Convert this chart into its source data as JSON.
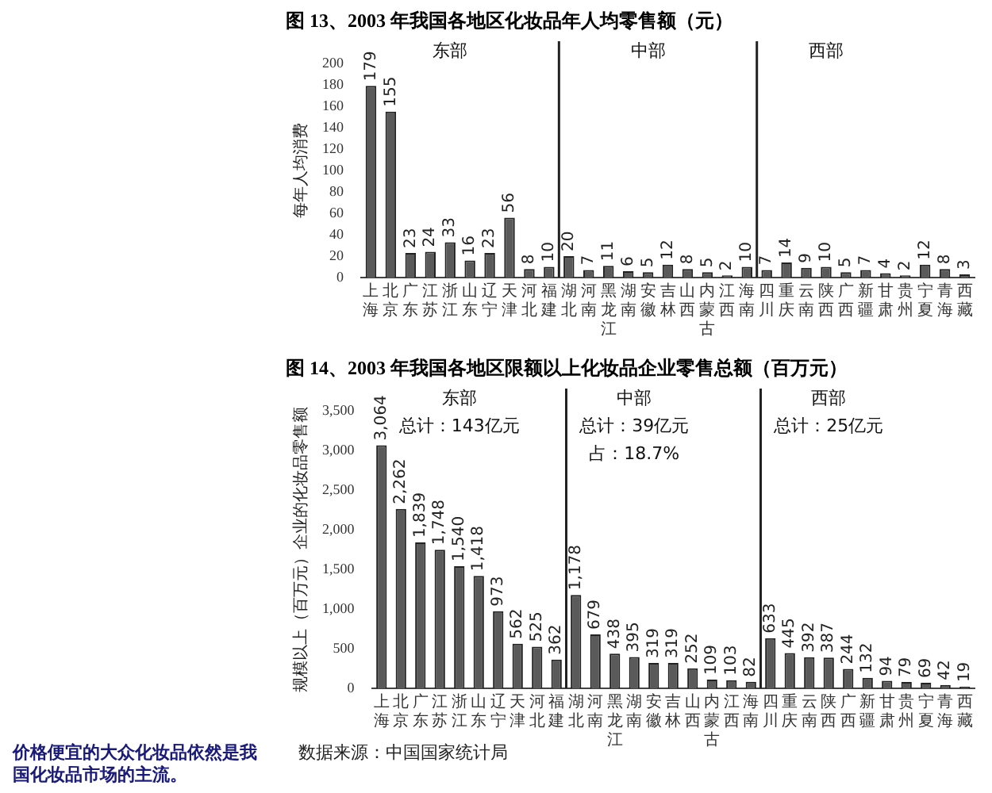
{
  "chart_data": [
    {
      "type": "bar",
      "title": "图 13、2003 年我国各地区化妆品年人均零售额（元）",
      "ylabel": "每年人均消费",
      "categories": [
        "上海",
        "北京",
        "广东",
        "江苏",
        "浙江",
        "山东",
        "辽宁",
        "天津",
        "河北",
        "福建",
        "湖北",
        "河南",
        "黑龙江",
        "湖南",
        "安徽",
        "吉林",
        "山西",
        "内蒙古",
        "江西",
        "海南",
        "四川",
        "重庆",
        "云南",
        "陕西",
        "广西",
        "新疆",
        "甘肃",
        "贵州",
        "宁夏",
        "青海",
        "西藏"
      ],
      "values": [
        179,
        155,
        23,
        24,
        33,
        16,
        23,
        56,
        8,
        10,
        20,
        7,
        11,
        6,
        5,
        12,
        8,
        5,
        2,
        10,
        7,
        14,
        9,
        10,
        5,
        7,
        4,
        2,
        12,
        8,
        3
      ],
      "color": "#5a5a5a",
      "data_labels": true,
      "ylim": [
        0,
        200
      ],
      "yticks": [
        0,
        20,
        40,
        60,
        80,
        100,
        120,
        140,
        160,
        180,
        200
      ],
      "grid": false,
      "legend": false,
      "annotations": [
        "东部",
        "中部",
        "西部"
      ]
    },
    {
      "type": "bar",
      "title": "图 14、2003 年我国各地区限额以上化妆品企业零售总额（百万元）",
      "ylabel": "规模以上（百万元）企业的化妆品零售额",
      "categories": [
        "上海",
        "北京",
        "广东",
        "江苏",
        "浙江",
        "山东",
        "辽宁",
        "天津",
        "河北",
        "福建",
        "湖北",
        "河南",
        "黑龙江",
        "湖南",
        "安徽",
        "吉林",
        "山西",
        "内蒙古",
        "江西",
        "海南",
        "四川",
        "重庆",
        "云南",
        "陕西",
        "广西",
        "新疆",
        "甘肃",
        "贵州",
        "宁夏",
        "青海",
        "西藏"
      ],
      "values": [
        3064,
        2262,
        1839,
        1748,
        1540,
        1418,
        973,
        562,
        525,
        362,
        1178,
        679,
        438,
        395,
        319,
        319,
        252,
        109,
        103,
        82,
        633,
        445,
        392,
        387,
        244,
        132,
        94,
        79,
        69,
        42,
        19
      ],
      "value_labels": [
        "3,064",
        "2,262",
        "1,839",
        "1,748",
        "1,540",
        "1,418",
        "973",
        "562",
        "525",
        "362",
        "1,178",
        "679",
        "438",
        "395",
        "319",
        "319",
        "252",
        "109",
        "103",
        "82",
        "633",
        "445",
        "392",
        "387",
        "244",
        "132",
        "94",
        "79",
        "69",
        "42",
        "19"
      ],
      "color": "#5a5a5a",
      "ylim": [
        0,
        3500
      ],
      "yticks": [
        0,
        500,
        {
          "value": 1000,
          "label": "1,000"
        },
        {
          "value": 1500,
          "label": "1,500"
        },
        {
          "value": 2000,
          "label": "2,000"
        },
        {
          "value": 2500,
          "label": "2,500"
        },
        {
          "value": 3000,
          "label": "3,000"
        },
        {
          "value": 3500,
          "label": "3,500"
        }
      ],
      "grid": false,
      "legend": false,
      "annotations": [
        "东部",
        "总计：143亿元",
        "中部",
        "总计：39亿元",
        "占：18.7%",
        "西部",
        "总计：25亿元",
        "价格便宜的大众化妆品依然是我国化妆品市场的主流。",
        "数据来源：中国国家统计局"
      ]
    }
  ]
}
